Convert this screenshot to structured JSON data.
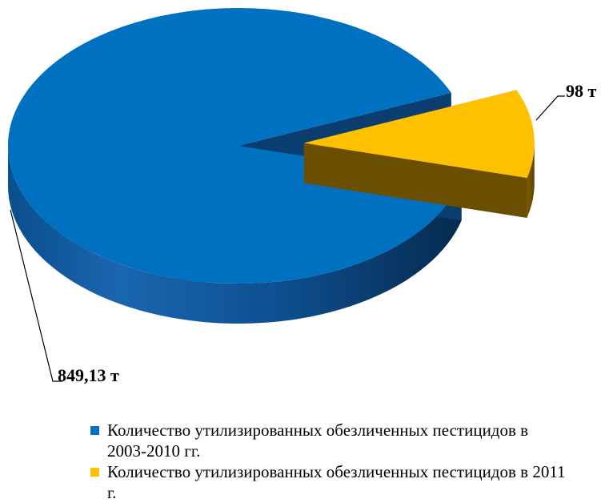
{
  "chart_data": {
    "type": "pie",
    "categories": [
      "Количество утилизированных обезличенных пестицидов в 2003-2010 гг.",
      "Количество утилизированных обезличенных пестицидов в 2011 г."
    ],
    "values": [
      849.13,
      98
    ],
    "data_labels": [
      "849,13 т",
      "98 т"
    ],
    "colors": [
      "#0070c0",
      "#ffc000"
    ],
    "legend_position": "bottom",
    "style": "3d-exploded"
  }
}
